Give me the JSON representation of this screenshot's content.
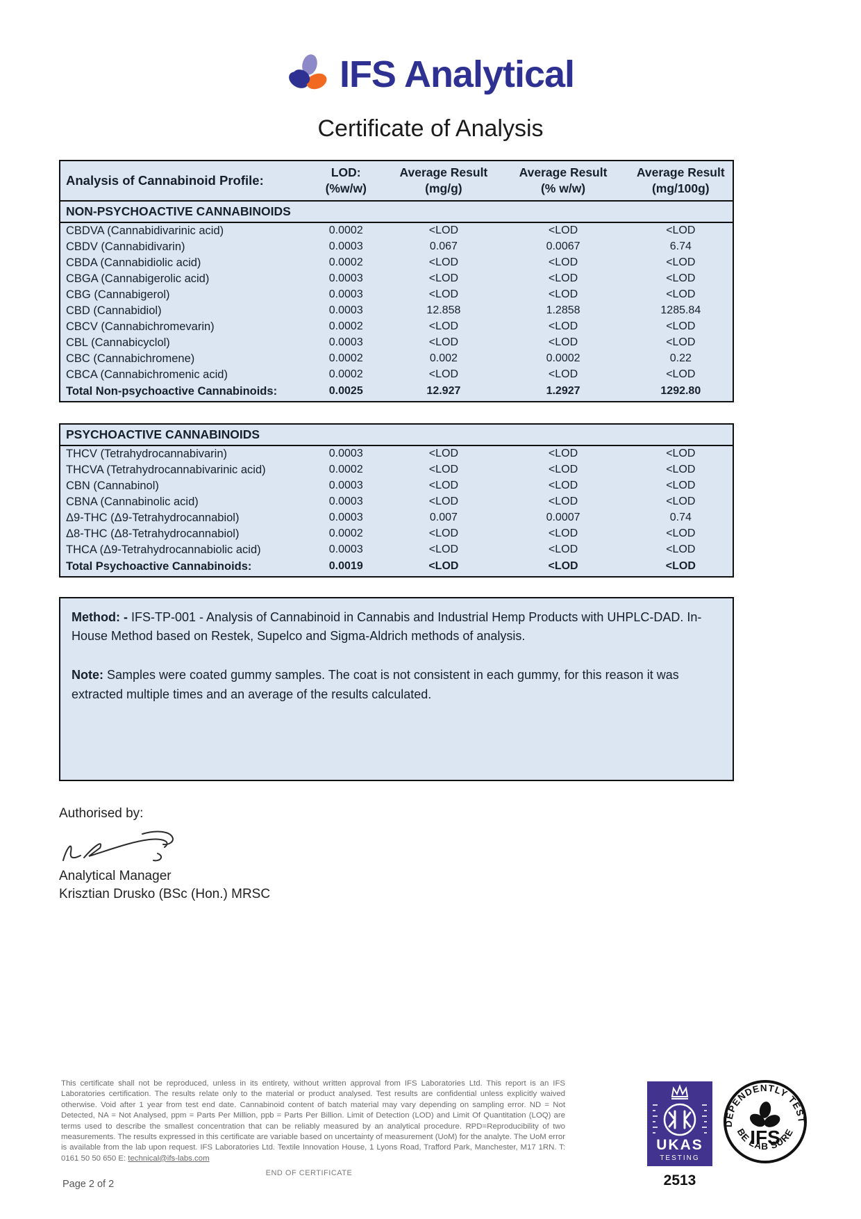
{
  "brand": {
    "name": "IFS Analytical"
  },
  "doc": {
    "title": "Certificate of Analysis"
  },
  "table": {
    "header": {
      "analyte": "Analysis of Cannabinoid Profile:",
      "cols": [
        {
          "line1": "LOD:",
          "line2": "(%w/w)"
        },
        {
          "line1": "Average Result",
          "line2": "(mg/g)"
        },
        {
          "line1": "Average Result",
          "line2": "(% w/w)"
        },
        {
          "line1": "Average Result",
          "line2": "(mg/100g)"
        }
      ]
    },
    "sections": [
      {
        "title": "NON-PSYCHOACTIVE CANNABINOIDS",
        "rows": [
          [
            "CBDVA (Cannabidivarinic acid)",
            "0.0002",
            "<LOD",
            "<LOD",
            "<LOD"
          ],
          [
            "CBDV (Cannabidivarin)",
            "0.0003",
            "0.067",
            "0.0067",
            "6.74"
          ],
          [
            "CBDA (Cannabidiolic acid)",
            "0.0002",
            "<LOD",
            "<LOD",
            "<LOD"
          ],
          [
            "CBGA (Cannabigerolic acid)",
            "0.0003",
            "<LOD",
            "<LOD",
            "<LOD"
          ],
          [
            "CBG (Cannabigerol)",
            "0.0003",
            "<LOD",
            "<LOD",
            "<LOD"
          ],
          [
            "CBD (Cannabidiol)",
            "0.0003",
            "12.858",
            "1.2858",
            "1285.84"
          ],
          [
            "CBCV (Cannabichromevarin)",
            "0.0002",
            "<LOD",
            "<LOD",
            "<LOD"
          ],
          [
            "CBL (Cannabicyclol)",
            "0.0003",
            "<LOD",
            "<LOD",
            "<LOD"
          ],
          [
            "CBC (Cannabichromene)",
            "0.0002",
            "0.002",
            "0.0002",
            "0.22"
          ],
          [
            "CBCA (Cannabichromenic acid)",
            "0.0002",
            "<LOD",
            "<LOD",
            "<LOD"
          ]
        ],
        "total": [
          "Total Non-psychoactive Cannabinoids:",
          "0.0025",
          "12.927",
          "1.2927",
          "1292.80"
        ]
      },
      {
        "title": "PSYCHOACTIVE CANNABINOIDS",
        "rows": [
          [
            "THCV (Tetrahydrocannabivarin)",
            "0.0003",
            "<LOD",
            "<LOD",
            "<LOD"
          ],
          [
            "THCVA (Tetrahydrocannabivarinic acid)",
            "0.0002",
            "<LOD",
            "<LOD",
            "<LOD"
          ],
          [
            "CBN (Cannabinol)",
            "0.0003",
            "<LOD",
            "<LOD",
            "<LOD"
          ],
          [
            "CBNA (Cannabinolic acid)",
            "0.0003",
            "<LOD",
            "<LOD",
            "<LOD"
          ],
          [
            "Δ9-THC (Δ9-Tetrahydrocannabiol)",
            "0.0003",
            "0.007",
            "0.0007",
            "0.74"
          ],
          [
            "Δ8-THC (Δ8-Tetrahydrocannabiol)",
            "0.0002",
            "<LOD",
            "<LOD",
            "<LOD"
          ],
          [
            "THCA (Δ9-Tetrahydrocannabiolic acid)",
            "0.0003",
            "<LOD",
            "<LOD",
            "<LOD"
          ]
        ],
        "total": [
          "Total Psychoactive Cannabinoids:",
          "0.0019",
          "<LOD",
          "<LOD",
          "<LOD"
        ]
      }
    ]
  },
  "method_box": {
    "method_label": "Method: -",
    "method_text": " IFS-TP-001 - Analysis of Cannabinoid in Cannabis and Industrial Hemp Products with UHPLC-DAD. In-House Method based on Restek, Supelco and Sigma-Aldrich methods of analysis.",
    "note_label": "Note:",
    "note_text": " Samples were coated gummy samples. The coat is not consistent in each gummy, for this reason it was extracted multiple times and an average of the results calculated."
  },
  "signature": {
    "authorised_label": "Authorised by:",
    "role": "Analytical Manager",
    "name": "Krisztian Drusko (BSc (Hon.) MRSC"
  },
  "footer": {
    "disclaimer": "This certificate shall not be reproduced, unless in its entirety, without written approval from IFS Laboratories Ltd. This report is an IFS Laboratories certification. The results relate only to the material or product analysed. Test results are confidential unless explicitly waived otherwise. Void after 1 year from test end date. Cannabinoid content of batch material may vary depending on sampling error. ND = Not Detected, NA = Not Analysed, ppm = Parts Per Million, ppb = Parts Per Billion. Limit of Detection (LOD) and Limit Of Quantitation (LOQ) are terms used to describe the smallest concentration that can be reliably measured by an analytical procedure. RPD=Reproducibility of two measurements. The results expressed in this certificate are variable based on uncertainty of measurement (UoM) for the analyte. The UoM error is available from the lab upon request. IFS Laboratories Ltd. Textile Innovation House, 1 Lyons Road, Trafford Park, Manchester, M17 1RN. T: 0161 50 50 650 E: ",
    "email": "technical@ifs-labs.com",
    "end_text": "END OF CERTIFICATE",
    "page": "Page 2 of 2"
  },
  "ukas": {
    "name": "UKAS",
    "sub": "TESTING",
    "number": "2513"
  },
  "stamp": {
    "arc_top": "INDEPENDENTLY TESTED",
    "center": "IFS",
    "arc_bottom": "BE LAB SURE"
  },
  "colors": {
    "brand_blue": "#2e3192",
    "logo_purple": "#8d88c7",
    "logo_orange": "#f26a21",
    "table_bg": "#dbe6f2",
    "ukas_purple": "#41338e"
  }
}
